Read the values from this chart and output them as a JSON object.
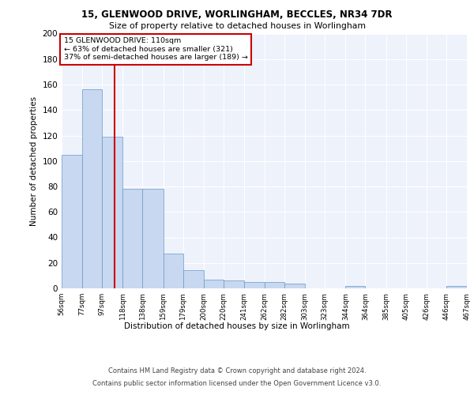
{
  "title_line1": "15, GLENWOOD DRIVE, WORLINGHAM, BECCLES, NR34 7DR",
  "title_line2": "Size of property relative to detached houses in Worlingham",
  "xlabel": "Distribution of detached houses by size in Worlingham",
  "ylabel": "Number of detached properties",
  "annotation_line1": "15 GLENWOOD DRIVE: 110sqm",
  "annotation_line2": "← 63% of detached houses are smaller (321)",
  "annotation_line3": "37% of semi-detached houses are larger (189) →",
  "property_value": 110,
  "bar_left_edges": [
    56,
    77,
    97,
    118,
    138,
    159,
    179,
    200,
    220,
    241,
    262,
    282,
    303,
    323,
    344,
    364,
    385,
    405,
    426,
    446
  ],
  "bar_widths": [
    21,
    20,
    21,
    20,
    21,
    20,
    21,
    20,
    21,
    21,
    20,
    21,
    20,
    21,
    20,
    21,
    20,
    21,
    20,
    21
  ],
  "bar_heights": [
    105,
    156,
    119,
    78,
    78,
    27,
    14,
    7,
    6,
    5,
    5,
    4,
    0,
    0,
    2,
    0,
    0,
    0,
    0,
    2
  ],
  "tick_labels": [
    "56sqm",
    "77sqm",
    "97sqm",
    "118sqm",
    "138sqm",
    "159sqm",
    "179sqm",
    "200sqm",
    "220sqm",
    "241sqm",
    "262sqm",
    "282sqm",
    "303sqm",
    "323sqm",
    "344sqm",
    "364sqm",
    "385sqm",
    "405sqm",
    "426sqm",
    "446sqm",
    "467sqm"
  ],
  "bar_color": "#c8d8f0",
  "bar_edge_color": "#6699cc",
  "bg_color": "#eef2fb",
  "grid_color": "#ffffff",
  "vline_color": "#cc0000",
  "vline_x": 110,
  "annotation_box_color": "#cc0000",
  "ylim": [
    0,
    200
  ],
  "yticks": [
    0,
    20,
    40,
    60,
    80,
    100,
    120,
    140,
    160,
    180,
    200
  ],
  "footer_line1": "Contains HM Land Registry data © Crown copyright and database right 2024.",
  "footer_line2": "Contains public sector information licensed under the Open Government Licence v3.0."
}
